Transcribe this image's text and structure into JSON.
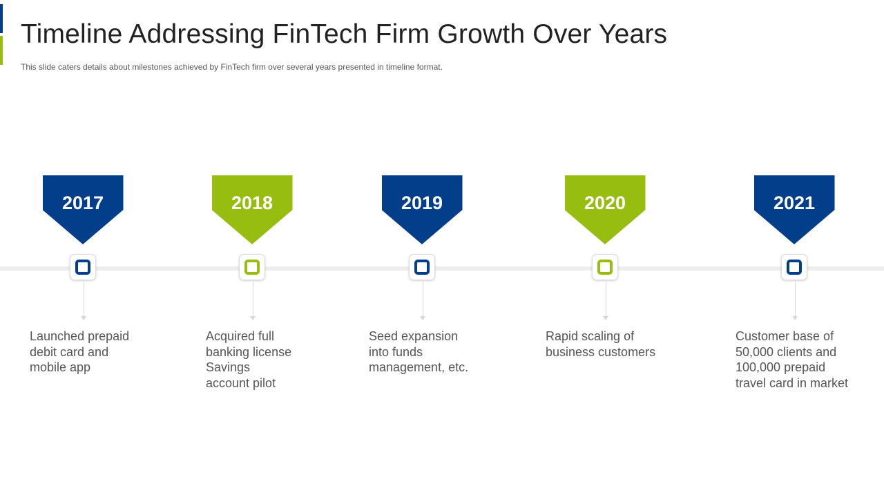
{
  "header": {
    "title": "Timeline Addressing FinTech Firm Growth Over Years",
    "subtitle": "This slide caters details about milestones achieved  by FinTech firm over  several  years presented in timeline format."
  },
  "colors": {
    "blue": "#023e8a",
    "green": "#97bd10",
    "line": "#eeeeee"
  },
  "milestones": [
    {
      "year": "2017",
      "color": "#023e8a",
      "lines": [
        "Launched prepaid",
        "debit card and",
        "mobile app"
      ]
    },
    {
      "year": "2018",
      "color": "#97bd10",
      "lines": [
        "Acquired full",
        "banking license",
        "Savings",
        "account pilot"
      ]
    },
    {
      "year": "2019",
      "color": "#023e8a",
      "lines": [
        "Seed expansion",
        "into funds",
        "management, etc."
      ]
    },
    {
      "year": "2020",
      "color": "#97bd10",
      "lines": [
        "Rapid scaling of",
        "business customers"
      ]
    },
    {
      "year": "2021",
      "color": "#023e8a",
      "lines": [
        "Customer base of",
        "50,000 clients and",
        "100,000 prepaid",
        "travel card in market"
      ]
    }
  ]
}
